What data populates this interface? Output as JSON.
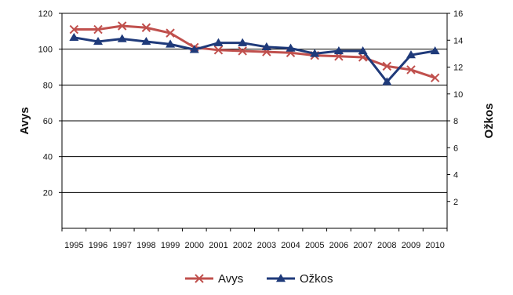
{
  "chart_data": {
    "type": "line",
    "title": "",
    "categories": [
      "1995",
      "1996",
      "1997",
      "1998",
      "1999",
      "2000",
      "2001",
      "2002",
      "2003",
      "2004",
      "2005",
      "2006",
      "2007",
      "2008",
      "2009",
      "2010"
    ],
    "series": [
      {
        "name": "Avys",
        "axis": "left",
        "color": "#c0504d",
        "marker": "x",
        "values": [
          111,
          111,
          113,
          112,
          109,
          101,
          99.5,
          99,
          98.5,
          98,
          96.5,
          96,
          95.5,
          90.5,
          88.5,
          84
        ]
      },
      {
        "name": "Ožkos",
        "axis": "right",
        "color": "#1f3a7a",
        "marker": "triangle",
        "values": [
          14.2,
          13.9,
          14.1,
          13.9,
          13.7,
          13.3,
          13.8,
          13.8,
          13.5,
          13.4,
          13.0,
          13.2,
          13.2,
          10.9,
          12.9,
          13.2
        ]
      }
    ],
    "y_left": {
      "label": "Avys",
      "range": [
        0,
        120
      ],
      "ticks": [
        20,
        40,
        60,
        80,
        100,
        120
      ]
    },
    "y_right": {
      "label": "Ožkos",
      "range": [
        0,
        16
      ],
      "ticks": [
        2,
        4,
        6,
        8,
        10,
        12,
        14,
        16
      ]
    },
    "grid": true,
    "legend": "bottom"
  }
}
